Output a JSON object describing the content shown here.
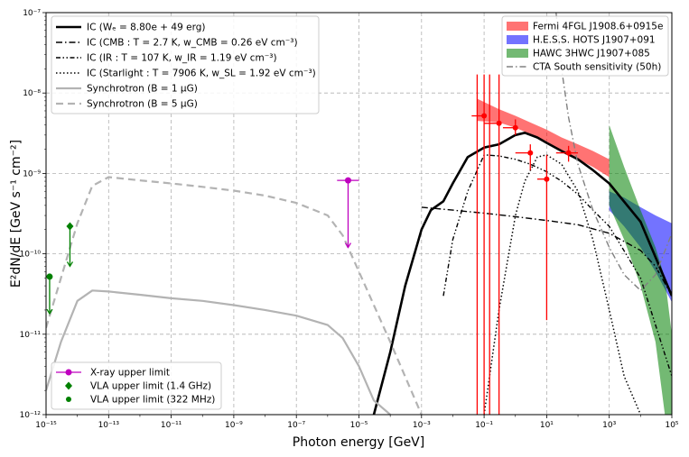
{
  "chart_data": {
    "type": "line",
    "xlabel": "Photon energy [GeV]",
    "ylabel": "E²dN/dE [GeV s⁻¹ cm⁻²]",
    "xscale": "log",
    "yscale": "log",
    "xlim": [
      1e-15,
      100000.0
    ],
    "ylim": [
      1e-12,
      1e-07
    ],
    "grid": true,
    "x_tick_labels": [
      "10⁻¹⁵",
      "10⁻¹³",
      "10⁻¹¹",
      "10⁻⁹",
      "10⁻⁷",
      "10⁻⁵",
      "10⁻³",
      "10⁻¹",
      "10¹",
      "10³",
      "10⁵"
    ],
    "y_tick_labels": [
      "10⁻¹²",
      "10⁻¹¹",
      "10⁻¹⁰",
      "10⁻⁹",
      "10⁻⁸",
      "10⁻⁷"
    ],
    "legend_left_placement": "top-left",
    "legend_right_placement": "top-right",
    "legend_bottom_placement": "bottom-left",
    "legend_left": [
      "IC (Wₑ = 8.80e + 49 erg)",
      "IC (CMB : T = 2.7 K, w_CMB = 0.26 eV cm⁻³)",
      "IC (IR : T = 107 K, w_IR = 1.19 eV cm⁻³)",
      "IC (Starlight : T = 7906 K, w_SL = 1.92 eV cm⁻³)",
      "Synchrotron (B = 1 μG)",
      "Synchrotron (B = 5 μG)"
    ],
    "legend_right": [
      "Fermi 4FGL J1908.6+0915e",
      "H.E.S.S. HOTS J1907+091",
      "HAWC 3HWC J1907+085",
      "CTA South sensitivity (50h)"
    ],
    "legend_bottom": [
      "X-ray upper limit",
      "VLA upper limit (1.4 GHz)",
      "VLA upper limit (322 MHz)"
    ],
    "colors": {
      "fermi": "#ff0000",
      "hess": "#0000ff",
      "hawc": "#008000",
      "cta": "#808080",
      "xray": "#bf00bf",
      "vla": "#008000",
      "synchrotron": "#b3b3b3",
      "ic": "#000000"
    },
    "series": [
      {
        "name": "IC (Wₑ = 8.80e + 49 erg)",
        "style": "solid-thick",
        "color": "#000000",
        "x": [
          3e-05,
          0.0001,
          0.0003,
          0.001,
          0.002,
          0.005,
          0.01,
          0.03,
          0.1,
          0.3,
          1,
          2,
          5,
          10,
          30,
          100,
          300,
          1000.0,
          10000.0,
          100000.0
        ],
        "y": [
          1e-12,
          6e-12,
          4e-11,
          2e-10,
          3.5e-10,
          4.5e-10,
          7.5e-10,
          1.6e-09,
          2.1e-09,
          2.3e-09,
          3e-09,
          3.2e-09,
          2.8e-09,
          2.4e-09,
          1.9e-09,
          1.5e-09,
          1.1e-09,
          7.5e-10,
          2.5e-10,
          3e-11
        ]
      },
      {
        "name": "IC (CMB : T = 2.7 K, w_CMB = 0.26 eV cm⁻³)",
        "style": "dashdot",
        "color": "#000000",
        "x": [
          0.001,
          0.01,
          0.1,
          1,
          10,
          100,
          1000.0,
          10000.0,
          30000.0,
          100000.0
        ],
        "y": [
          3.8e-10,
          3.5e-10,
          3.2e-10,
          2.9e-10,
          2.6e-10,
          2.3e-10,
          1.8e-10,
          1.1e-10,
          7e-11,
          3e-11
        ]
      },
      {
        "name": "IC (IR : T = 107 K, w_IR = 1.19 eV cm⁻³)",
        "style": "dashdotdot",
        "color": "#000000",
        "x": [
          0.005,
          0.01,
          0.03,
          0.1,
          0.3,
          1,
          3,
          10,
          30,
          100,
          300,
          1000.0,
          10000.0,
          100000.0
        ],
        "y": [
          3e-11,
          1.5e-10,
          6e-10,
          1.7e-09,
          1.65e-09,
          1.5e-09,
          1.3e-09,
          1.05e-09,
          8e-10,
          5.5e-10,
          3.5e-10,
          2.2e-10,
          5e-11,
          3e-12
        ]
      },
      {
        "name": "IC (Starlight : T = 7906 K, w_SL = 1.92 eV cm⁻³)",
        "style": "dotted",
        "color": "#000000",
        "x": [
          0.1,
          0.3,
          1,
          2,
          5,
          10,
          30,
          100,
          300,
          1000.0,
          3000.0,
          10000.0
        ],
        "y": [
          1e-12,
          2e-11,
          3e-10,
          8e-10,
          1.6e-09,
          1.7e-09,
          1.3e-09,
          6e-10,
          1.5e-10,
          2e-11,
          3e-12,
          1e-12
        ]
      },
      {
        "name": "Synchrotron (B = 1 μG)",
        "style": "solid",
        "color": "#b3b3b3",
        "x": [
          1e-15,
          3e-15,
          1e-14,
          3e-14,
          1e-13,
          1e-12,
          1e-11,
          1e-10,
          1e-09,
          1e-08,
          1e-07,
          1e-06,
          3e-06,
          1e-05,
          3e-05,
          0.0001
        ],
        "y": [
          2e-12,
          8e-12,
          2.6e-11,
          3.5e-11,
          3.4e-11,
          3.1e-11,
          2.8e-11,
          2.6e-11,
          2.3e-11,
          2e-11,
          1.7e-11,
          1.3e-11,
          9e-12,
          4e-12,
          1.5e-12,
          1e-12
        ]
      },
      {
        "name": "Synchrotron (B = 5 μG)",
        "style": "dashed",
        "color": "#b3b3b3",
        "x": [
          1e-15,
          3e-15,
          1e-14,
          3e-14,
          1e-13,
          1e-12,
          1e-11,
          1e-10,
          1e-09,
          1e-08,
          1e-07,
          1e-06,
          3e-06,
          1e-05,
          0.0001,
          0.001
        ],
        "y": [
          1.2e-11,
          5e-11,
          2.4e-10,
          7e-10,
          9e-10,
          8.2e-10,
          7.5e-10,
          6.8e-10,
          6.1e-10,
          5.3e-10,
          4.3e-10,
          3e-10,
          1.7e-10,
          6e-11,
          8e-12,
          1e-12
        ]
      },
      {
        "name": "CTA South sensitivity (50h)",
        "style": "dashdot",
        "color": "#808080",
        "x": [
          20,
          30,
          50,
          100,
          300,
          1000.0,
          3000.0,
          10000.0,
          30000.0,
          100000.0
        ],
        "y": [
          1e-07,
          2e-08,
          5e-09,
          1.3e-09,
          3.5e-10,
          1.2e-10,
          5.5e-11,
          3.5e-11,
          5.5e-11,
          1.8e-10
        ]
      }
    ],
    "bands": [
      {
        "name": "Fermi 4FGL J1908.6+0915e",
        "color": "#ff0000",
        "opacity": 0.55,
        "x": [
          0.06,
          0.3,
          1,
          3,
          10,
          30,
          100,
          300,
          1000
        ],
        "upper": [
          8.5e-09,
          6.3e-09,
          5.2e-09,
          4.3e-09,
          3.5e-09,
          2.8e-09,
          2.3e-09,
          1.9e-09,
          1.5e-09
        ],
        "lower": [
          4.5e-09,
          4.3e-09,
          3.7e-09,
          3.1e-09,
          2.5e-09,
          1.9e-09,
          1.5e-09,
          1.2e-09,
          9e-10
        ]
      },
      {
        "name": "H.E.S.S. HOTS J1907+091",
        "color": "#0000ff",
        "opacity": 0.55,
        "x": [
          1000,
          3000,
          10000,
          30000,
          100000
        ],
        "upper": [
          6e-10,
          5e-10,
          3.8e-10,
          3e-10,
          2.4e-10
        ],
        "lower": [
          3.5e-10,
          2.2e-10,
          1.2e-10,
          6e-11,
          2.5e-11
        ]
      },
      {
        "name": "HAWC 3HWC J1907+085",
        "color": "#008000",
        "opacity": 0.55,
        "x": [
          1000,
          3000,
          10000,
          30000,
          60000,
          100000
        ],
        "upper": [
          4e-09,
          1.2e-09,
          3.5e-10,
          1.2e-10,
          5e-11,
          1e-11
        ],
        "lower": [
          4e-10,
          1.5e-10,
          4e-11,
          8e-12,
          1e-12,
          1e-12
        ]
      }
    ],
    "fermi_points": {
      "name": "Fermi 4FGL J1908.6+0915e",
      "x": [
        0.1,
        0.3,
        1,
        3,
        10,
        50
      ],
      "y": [
        5.2e-09,
        4.2e-09,
        3.7e-09,
        1.8e-09,
        8.5e-10,
        1.8e-09
      ],
      "xerr_lo": [
        0.04,
        0.1,
        0.4,
        1,
        5,
        20
      ],
      "xerr_hi": [
        0.1,
        0.3,
        1,
        3,
        10,
        100
      ],
      "yerr_lo": [
        1e-12,
        1e-12,
        3e-09,
        1.1e-09,
        1.5e-11,
        1.4e-09
      ],
      "yerr_hi": [
        1.7e-08,
        1.7e-08,
        4.7e-09,
        2.3e-09,
        1.7e-09,
        2.2e-09
      ],
      "long_error_bars": [
        0.06,
        0.15
      ]
    },
    "upper_limits": [
      {
        "name": "X-ray upper limit",
        "marker": "circle",
        "color": "#bf00bf",
        "x": 4.5e-06,
        "y": 8.2e-10,
        "xerr": [
          2e-06,
          1e-05
        ],
        "arrow_to": 1.2e-10
      },
      {
        "name": "VLA upper limit (1.4 GHz)",
        "marker": "diamond",
        "color": "#008000",
        "x": 5.8e-15,
        "y": 2.2e-10,
        "arrow_to": 7e-11
      },
      {
        "name": "VLA upper limit (322 MHz)",
        "marker": "circle",
        "color": "#008000",
        "x": 1.3e-15,
        "y": 5.2e-11,
        "arrow_to": 1.8e-11
      }
    ]
  }
}
